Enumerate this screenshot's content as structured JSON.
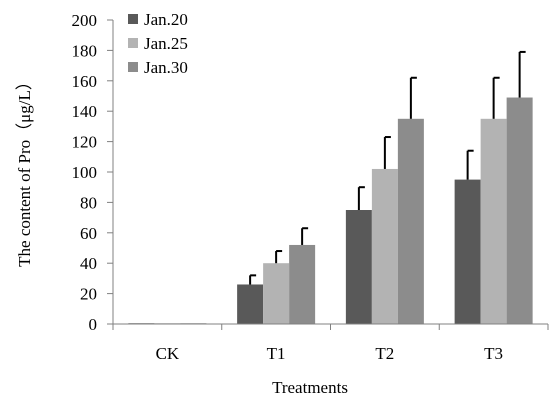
{
  "chart_data": {
    "type": "bar",
    "xlabel": "Treatments",
    "ylabel": "The content of Pro（μg/L）",
    "ylim": [
      0,
      200
    ],
    "yticks": [
      0,
      20,
      40,
      60,
      80,
      100,
      120,
      140,
      160,
      180,
      200
    ],
    "categories": [
      "CK",
      "T1",
      "T2",
      "T3"
    ],
    "series": [
      {
        "name": "Jan.20",
        "color": "#595959",
        "values": [
          0.5,
          26,
          75,
          95
        ],
        "errors": [
          0,
          6,
          15,
          19
        ]
      },
      {
        "name": "Jan.25",
        "color": "#b3b3b3",
        "values": [
          0.5,
          40,
          102,
          135
        ],
        "errors": [
          0,
          8,
          21,
          27
        ]
      },
      {
        "name": "Jan.30",
        "color": "#8c8c8c",
        "values": [
          0.5,
          52,
          135,
          149
        ],
        "errors": [
          0,
          11,
          27,
          30
        ]
      }
    ],
    "legend_position": "top-left",
    "grid": false
  }
}
